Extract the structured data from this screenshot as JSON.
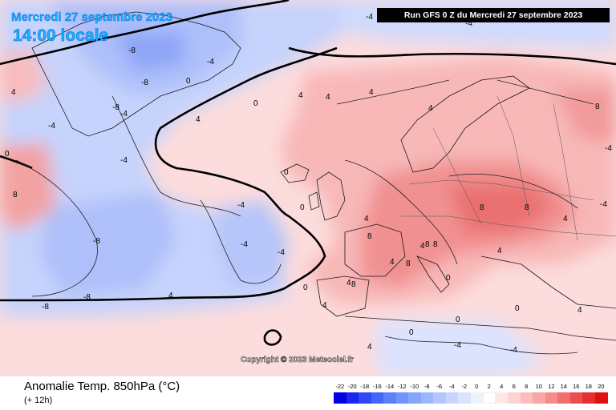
{
  "header": {
    "date": "Mercredi 27 septembre 2023",
    "time": "14:00 locale",
    "run": "Run GFS 0 Z du Mercredi 27 septembre 2023"
  },
  "map": {
    "copyright": "Copyright © 2023 Meteociel.fr",
    "contour_labels": [
      {
        "id": "l1",
        "text": "4"
      },
      {
        "id": "l2",
        "text": "0"
      },
      {
        "id": "l3",
        "text": "-4"
      },
      {
        "id": "l4",
        "text": "-8"
      },
      {
        "id": "l5",
        "text": "-8"
      },
      {
        "id": "l6",
        "text": "-4"
      },
      {
        "id": "l7",
        "text": "0"
      },
      {
        "id": "l8",
        "text": "-4"
      },
      {
        "id": "l9",
        "text": "-8"
      },
      {
        "id": "l10",
        "text": "-4"
      },
      {
        "id": "l11",
        "text": "-4"
      },
      {
        "id": "l12",
        "text": "-8"
      },
      {
        "id": "l13",
        "text": "-4"
      },
      {
        "id": "l14",
        "text": "-8"
      },
      {
        "id": "l15",
        "text": "-8"
      },
      {
        "id": "l16",
        "text": "-4"
      },
      {
        "id": "l17",
        "text": "0"
      },
      {
        "id": "l18",
        "text": "4"
      },
      {
        "id": "l19",
        "text": "8"
      },
      {
        "id": "l20",
        "text": "4"
      },
      {
        "id": "l21",
        "text": "0"
      },
      {
        "id": "l22",
        "text": "4"
      },
      {
        "id": "l23",
        "text": "4"
      },
      {
        "id": "l24",
        "text": "4"
      },
      {
        "id": "l25",
        "text": "4"
      },
      {
        "id": "l26",
        "text": "0"
      },
      {
        "id": "l27",
        "text": "4"
      },
      {
        "id": "l28",
        "text": "8"
      },
      {
        "id": "l29",
        "text": "4"
      },
      {
        "id": "l30",
        "text": "8"
      },
      {
        "id": "l31",
        "text": "4"
      },
      {
        "id": "l32",
        "text": "8"
      },
      {
        "id": "l33",
        "text": "8"
      },
      {
        "id": "l34",
        "text": "8"
      },
      {
        "id": "l35",
        "text": "8"
      },
      {
        "id": "l36",
        "text": "8"
      },
      {
        "id": "l37",
        "text": "4"
      },
      {
        "id": "l38",
        "text": "-4"
      },
      {
        "id": "l39",
        "text": "-4"
      },
      {
        "id": "l40",
        "text": "0"
      },
      {
        "id": "l41",
        "text": "4"
      },
      {
        "id": "l42",
        "text": "8"
      },
      {
        "id": "l43",
        "text": "4"
      },
      {
        "id": "l44",
        "text": "0"
      },
      {
        "id": "l45",
        "text": "4"
      },
      {
        "id": "l46",
        "text": "-4"
      },
      {
        "id": "l47",
        "text": "0"
      },
      {
        "id": "l48",
        "text": "0"
      },
      {
        "id": "l49",
        "text": "4"
      },
      {
        "id": "l50",
        "text": "4"
      },
      {
        "id": "l51",
        "text": "-4"
      },
      {
        "id": "l52",
        "text": "-4"
      },
      {
        "id": "l53",
        "text": "0"
      },
      {
        "id": "l54",
        "text": "-4"
      }
    ]
  },
  "legend": {
    "title": "Anomalie Temp. 850hPa (°C)",
    "subtitle": "(+ 12h)",
    "ticks": [
      "-22",
      "-20",
      "-18",
      "-16",
      "-14",
      "-12",
      "-10",
      "-8",
      "-6",
      "-4",
      "-2",
      "0",
      "2",
      "4",
      "6",
      "8",
      "10",
      "12",
      "14",
      "16",
      "18",
      "20"
    ],
    "colors": [
      "#0000e0",
      "#1a24f0",
      "#2e48f5",
      "#4466f8",
      "#5a80fa",
      "#7094fb",
      "#86a6fc",
      "#9cb6fd",
      "#b2c6fe",
      "#c6d4fe",
      "#dae2fe",
      "#eef2fe",
      "#ffffff",
      "#fde8e8",
      "#fcd4d4",
      "#fabebe",
      "#f8a6a6",
      "#f58c8c",
      "#f07070",
      "#ea5050",
      "#e43030",
      "#de1010"
    ]
  }
}
